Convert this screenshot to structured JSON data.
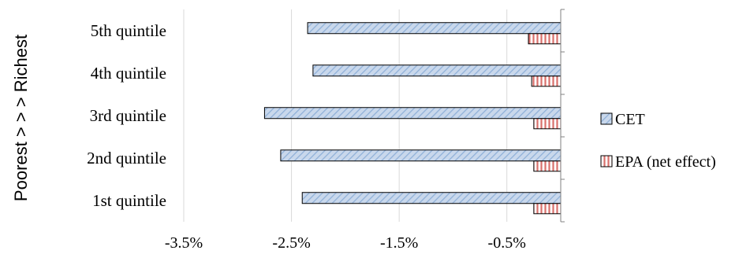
{
  "chart_data": {
    "type": "bar",
    "orientation": "horizontal",
    "title": "",
    "xlabel": "",
    "ylabel": "Poorest > > > Richest",
    "categories": [
      "1st quintile",
      "2nd quintile",
      "3rd quintile",
      "4th quintile",
      "5th quintile"
    ],
    "series": [
      {
        "name": "CET",
        "values": [
          -2.4,
          -2.6,
          -2.75,
          -2.3,
          -2.35
        ],
        "fill": "#c9d8ec",
        "hatch_color": "#8fb0d8",
        "pattern": "diagonal-hatch"
      },
      {
        "name": "EPA (net effect)",
        "values": [
          -0.25,
          -0.25,
          -0.25,
          -0.27,
          -0.3
        ],
        "fill": "#ffffff",
        "hatch_color": "#d9706c",
        "pattern": "vertical-stripes"
      }
    ],
    "xlim": [
      -3.5,
      0
    ],
    "xticks": [
      -3.5,
      -2.5,
      -1.5,
      -0.5
    ],
    "xtick_labels": [
      "-3.5%",
      "-2.5%",
      "-1.5%",
      "-0.5%"
    ],
    "grid": true,
    "legend_position": "right",
    "colors": {
      "grid": "#d9d9d9",
      "axis": "#808080",
      "bar_outline": "#000000"
    }
  }
}
